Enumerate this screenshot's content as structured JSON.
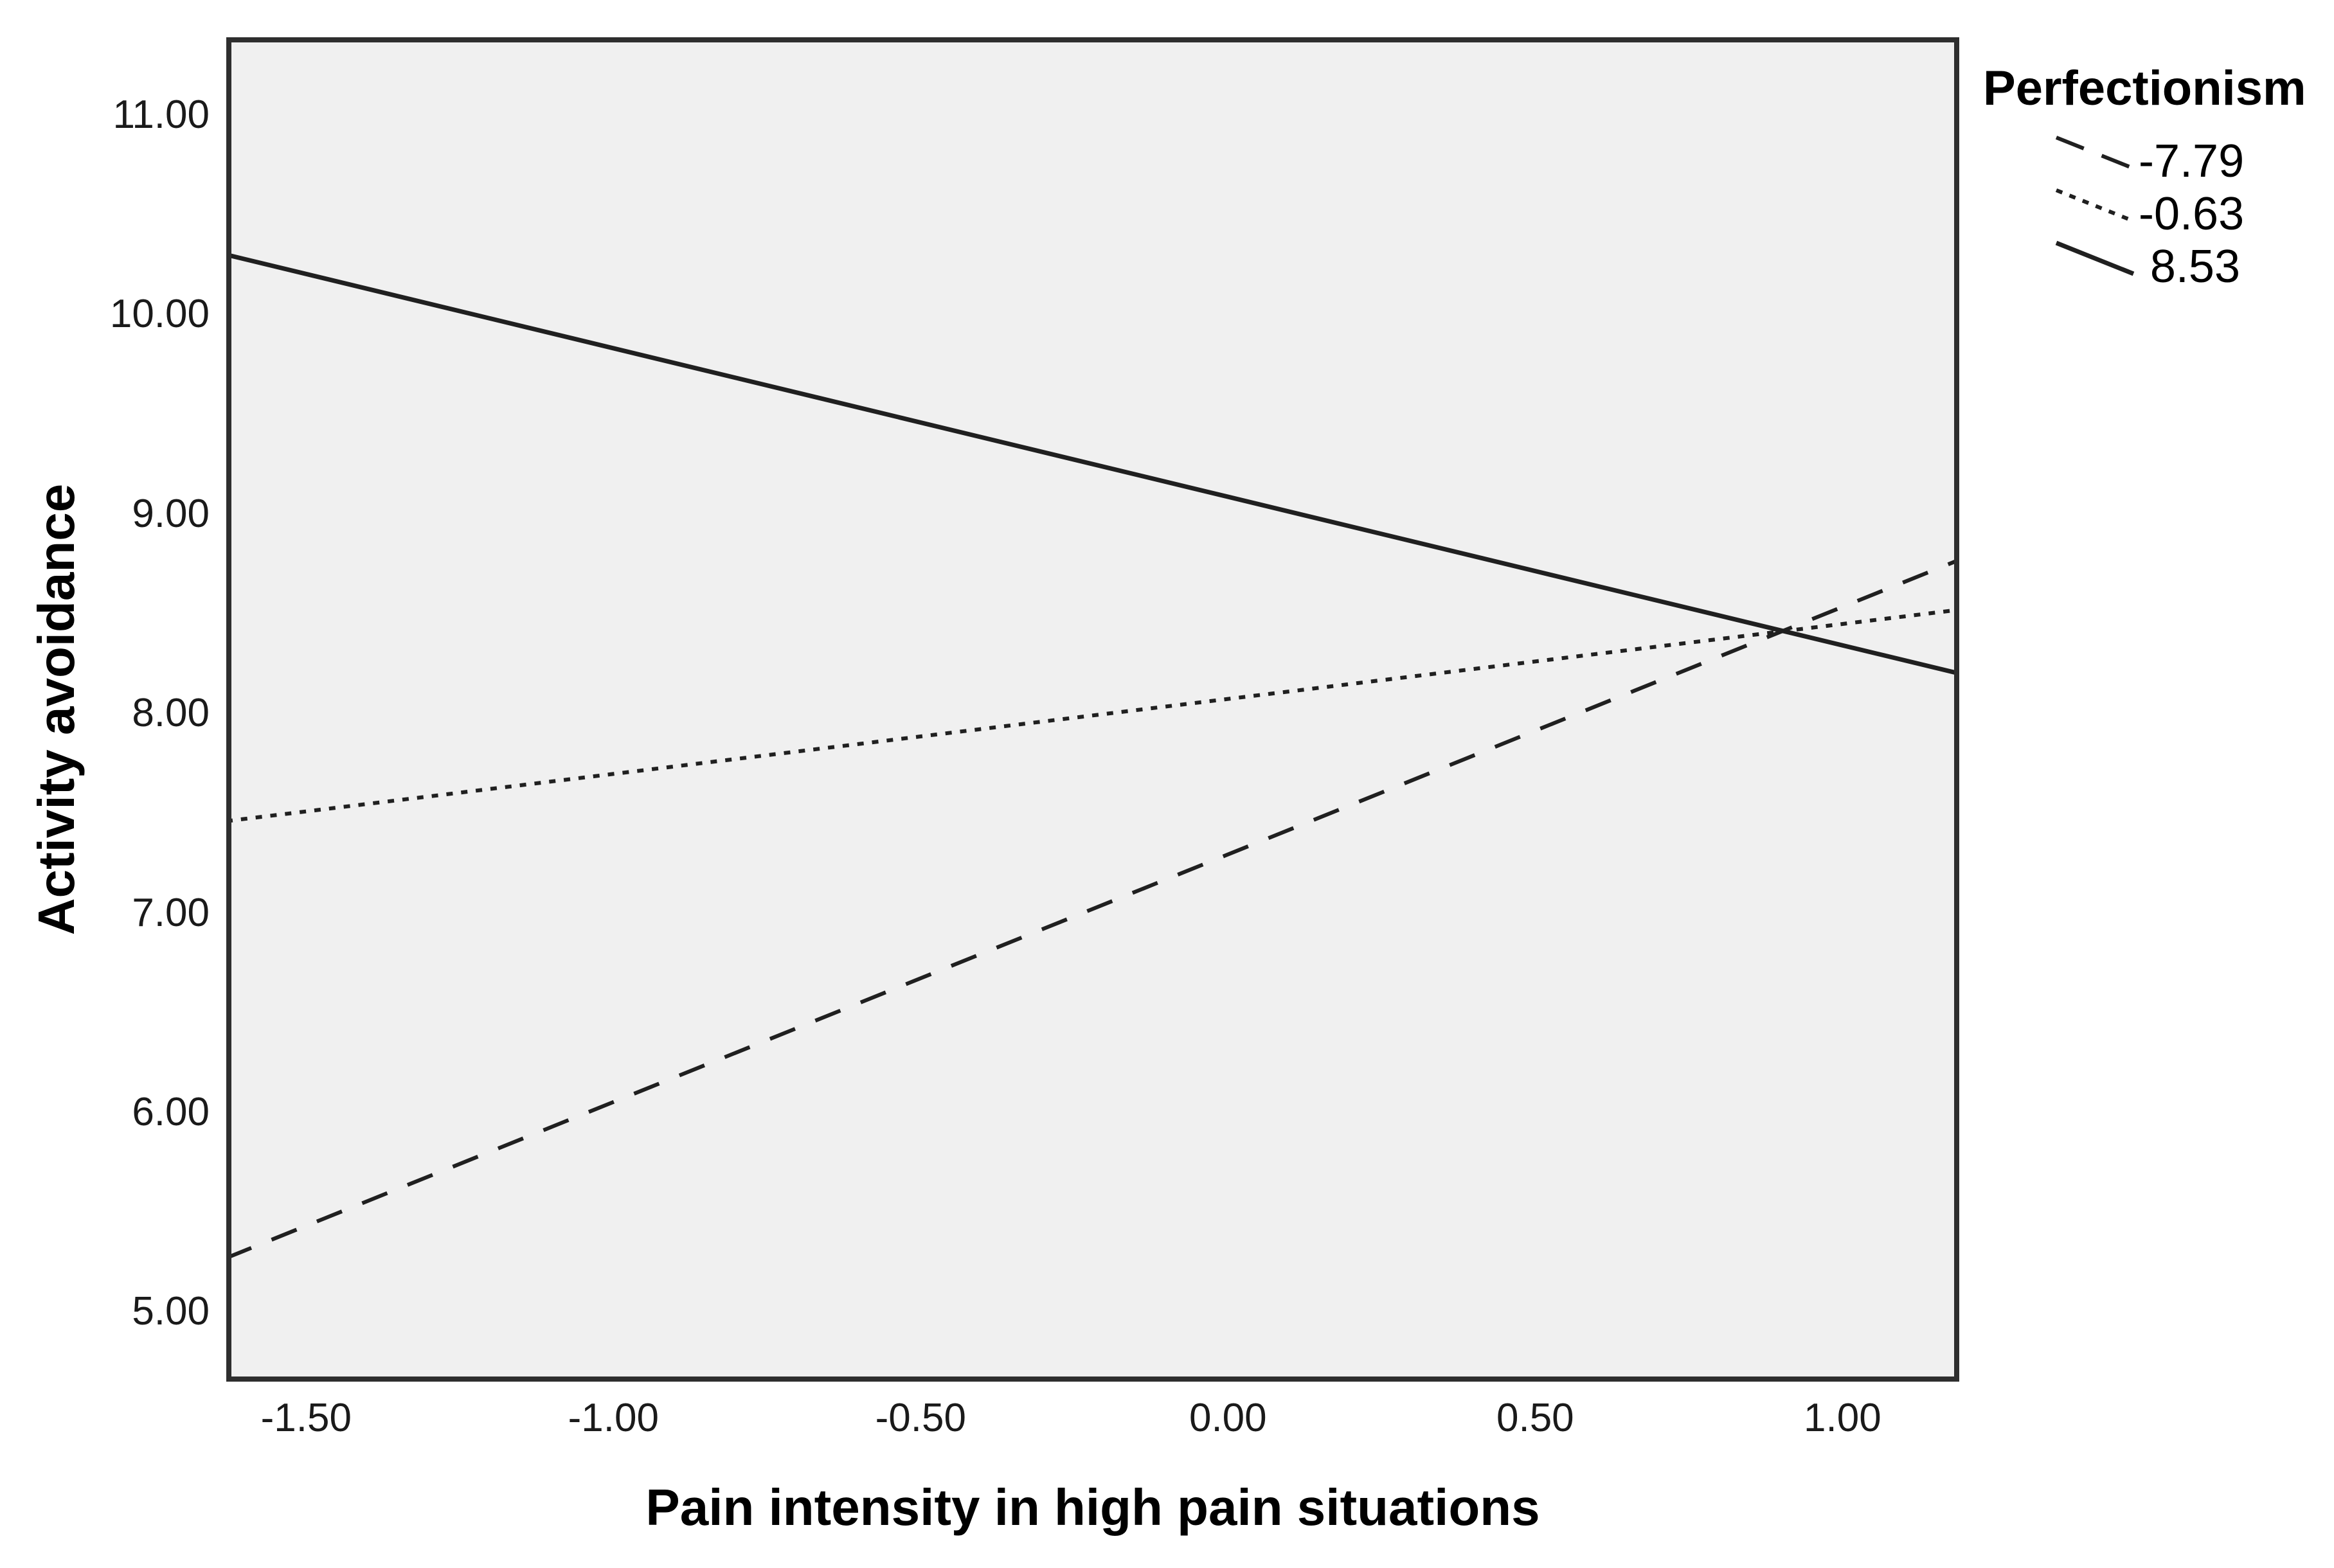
{
  "chart_data": {
    "type": "line",
    "title": "",
    "xlabel": "Pain intensity in high pain situations",
    "ylabel": "Activity avoidance",
    "legend_title": "Perfectionism",
    "legend_position": "outside-top-right",
    "grid": false,
    "x_axis": {
      "min": -1.63,
      "max": 1.19,
      "ticks": [
        {
          "label": "-1.50",
          "value": -1.5
        },
        {
          "label": "-1.00",
          "value": -1.0
        },
        {
          "label": "-0.50",
          "value": -0.5
        },
        {
          "label": "0.00",
          "value": 0.0
        },
        {
          "label": "0.50",
          "value": 0.5
        },
        {
          "label": "1.00",
          "value": 1.0
        }
      ]
    },
    "y_axis": {
      "min": 4.65,
      "max": 11.39,
      "ticks": [
        {
          "label": "11.00",
          "value": 11
        },
        {
          "label": "10.00",
          "value": 10
        },
        {
          "label": "9.00",
          "value": 9
        },
        {
          "label": "8.00",
          "value": 8
        },
        {
          "label": "7.00",
          "value": 7
        },
        {
          "label": "6.00",
          "value": 6
        },
        {
          "label": "5.00",
          "value": 5
        }
      ]
    },
    "series": [
      {
        "name": "-7.79",
        "style": "dashed",
        "points": [
          {
            "x": -1.63,
            "y": 5.27
          },
          {
            "x": 1.19,
            "y": 8.77
          }
        ]
      },
      {
        "name": "-0.63",
        "style": "dotted",
        "points": [
          {
            "x": -1.63,
            "y": 7.46
          },
          {
            "x": 1.19,
            "y": 8.52
          }
        ]
      },
      {
        "name": "8.53",
        "style": "solid",
        "points": [
          {
            "x": -1.63,
            "y": 10.3
          },
          {
            "x": 1.19,
            "y": 8.2
          }
        ]
      }
    ],
    "colors": {
      "line": "#202020",
      "plot_background": "#f0f0f0",
      "frame": "#2e2e2e",
      "text": "#000000"
    }
  }
}
